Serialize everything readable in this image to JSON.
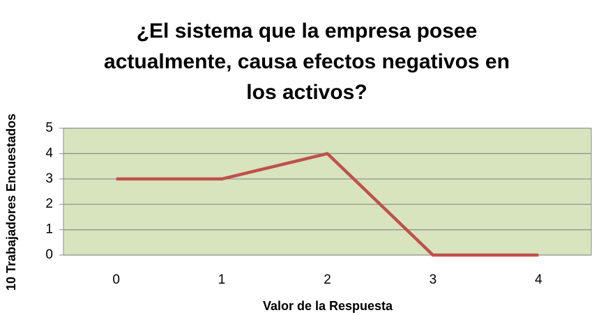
{
  "chart_data": {
    "type": "line",
    "title": [
      "¿El sistema que la empresa posee",
      "actualmente, causa efectos negativos en",
      "los activos?"
    ],
    "x_label": "Valor de la Respuesta",
    "y_label": "10 Trabajadores Encuestados",
    "categories": [
      "0",
      "1",
      "2",
      "3",
      "4"
    ],
    "series": [
      {
        "color": "#c0504d",
        "values": [
          3,
          3,
          4,
          0,
          0
        ]
      }
    ],
    "ylim": [
      0,
      5
    ],
    "yticks": [
      0,
      1,
      2,
      3,
      4,
      5
    ],
    "grid": true,
    "plot_background": "#d7e4bd"
  }
}
